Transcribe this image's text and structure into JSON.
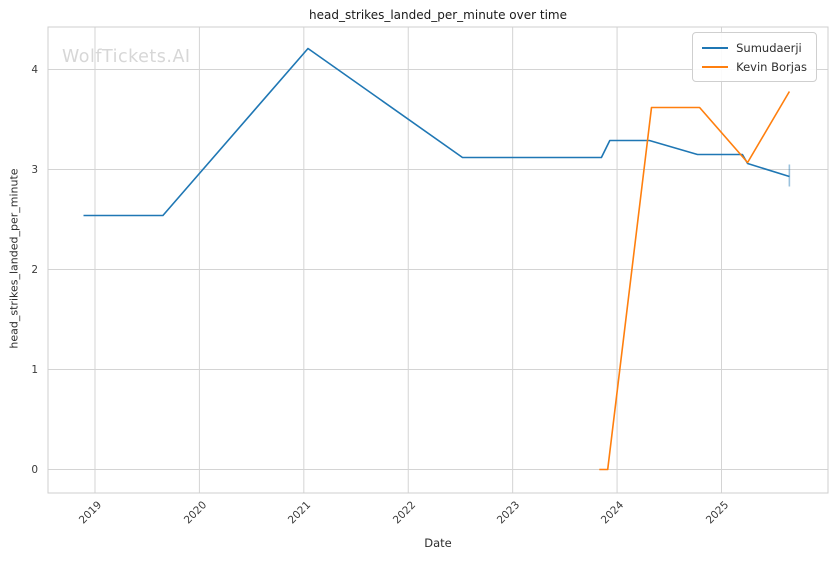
{
  "watermark": "WolfTickets.AI",
  "colors": {
    "series_blue": "#1f77b4",
    "series_orange": "#ff7f0e",
    "grid": "#d4d4d4",
    "spine": "#cfcfcf",
    "watermark": "#d7d7d7",
    "background": "#ffffff"
  },
  "chart_data": {
    "type": "line",
    "title": "head_strikes_landed_per_minute over time",
    "xlabel": "Date",
    "ylabel": "head_strikes_landed_per_minute",
    "x_unit": "year_decimal",
    "xlim": [
      2018.55,
      2026.02
    ],
    "ylim": [
      -0.235,
      4.425
    ],
    "x_ticks": [
      2019,
      2020,
      2021,
      2022,
      2023,
      2024,
      2025
    ],
    "y_ticks": [
      0,
      1,
      2,
      3,
      4
    ],
    "grid": true,
    "legend_position": "upper right",
    "series": [
      {
        "name": "Sumudaerji",
        "color": "#1f77b4",
        "points": [
          [
            2018.89,
            2.54
          ],
          [
            2019.65,
            2.54
          ],
          [
            2021.04,
            4.21
          ],
          [
            2022.52,
            3.12
          ],
          [
            2023.85,
            3.12
          ],
          [
            2023.93,
            3.29
          ],
          [
            2024.31,
            3.29
          ],
          [
            2024.77,
            3.15
          ],
          [
            2025.2,
            3.15
          ],
          [
            2025.25,
            3.06
          ],
          [
            2025.65,
            2.93
          ]
        ],
        "error_bar": {
          "x": 2025.65,
          "y_low": 2.83,
          "y_high": 3.05
        }
      },
      {
        "name": "Kevin Borjas",
        "color": "#ff7f0e",
        "points": [
          [
            2023.83,
            0.0
          ],
          [
            2023.91,
            0.0
          ],
          [
            2024.33,
            3.62
          ],
          [
            2024.79,
            3.62
          ],
          [
            2025.25,
            3.07
          ],
          [
            2025.65,
            3.78
          ]
        ]
      }
    ]
  }
}
